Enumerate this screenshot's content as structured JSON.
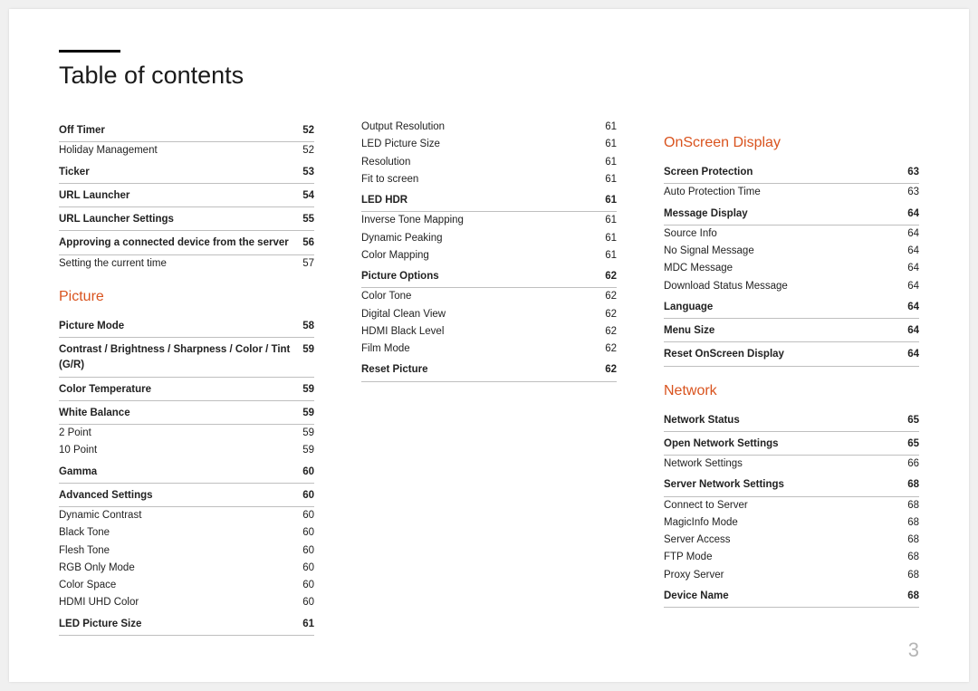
{
  "title": "Table of contents",
  "page_number": "3",
  "accent_color": "#d9531e",
  "columns": [
    {
      "sections": [
        {
          "heading": null,
          "rows": [
            {
              "label": "Off Timer",
              "page": "52",
              "bold": true
            },
            {
              "label": "Holiday Management",
              "page": "52",
              "bold": false
            },
            {
              "label": "Ticker",
              "page": "53",
              "bold": true
            },
            {
              "label": "URL Launcher",
              "page": "54",
              "bold": true
            },
            {
              "label": "URL Launcher Settings",
              "page": "55",
              "bold": true
            },
            {
              "label": "Approving a connected device from the server",
              "page": "56",
              "bold": true
            },
            {
              "label": "Setting the current time",
              "page": "57",
              "bold": false
            }
          ]
        },
        {
          "heading": "Picture",
          "rows": [
            {
              "label": "Picture Mode",
              "page": "58",
              "bold": true
            },
            {
              "label": "Contrast / Brightness / Sharpness / Color / Tint (G/R)",
              "page": "59",
              "bold": true
            },
            {
              "label": "Color Temperature",
              "page": "59",
              "bold": true
            },
            {
              "label": "White Balance",
              "page": "59",
              "bold": true
            },
            {
              "label": "2 Point",
              "page": "59",
              "bold": false
            },
            {
              "label": "10 Point",
              "page": "59",
              "bold": false
            },
            {
              "label": "Gamma",
              "page": "60",
              "bold": true
            },
            {
              "label": "Advanced Settings",
              "page": "60",
              "bold": true
            },
            {
              "label": "Dynamic Contrast",
              "page": "60",
              "bold": false
            },
            {
              "label": "Black Tone",
              "page": "60",
              "bold": false
            },
            {
              "label": "Flesh Tone",
              "page": "60",
              "bold": false
            },
            {
              "label": "RGB Only Mode",
              "page": "60",
              "bold": false
            },
            {
              "label": "Color Space",
              "page": "60",
              "bold": false
            },
            {
              "label": "HDMI UHD Color",
              "page": "60",
              "bold": false
            },
            {
              "label": "LED Picture Size",
              "page": "61",
              "bold": true
            }
          ]
        }
      ]
    },
    {
      "sections": [
        {
          "heading": null,
          "rows": [
            {
              "label": "Output Resolution",
              "page": "61",
              "bold": false
            },
            {
              "label": "LED Picture Size",
              "page": "61",
              "bold": false
            },
            {
              "label": "Resolution",
              "page": "61",
              "bold": false
            },
            {
              "label": "Fit to screen",
              "page": "61",
              "bold": false
            },
            {
              "label": "LED HDR",
              "page": "61",
              "bold": true
            },
            {
              "label": "Inverse Tone Mapping",
              "page": "61",
              "bold": false
            },
            {
              "label": "Dynamic Peaking",
              "page": "61",
              "bold": false
            },
            {
              "label": "Color Mapping",
              "page": "61",
              "bold": false
            },
            {
              "label": "Picture Options",
              "page": "62",
              "bold": true
            },
            {
              "label": "Color Tone",
              "page": "62",
              "bold": false
            },
            {
              "label": "Digital Clean View",
              "page": "62",
              "bold": false
            },
            {
              "label": "HDMI Black Level",
              "page": "62",
              "bold": false
            },
            {
              "label": "Film Mode",
              "page": "62",
              "bold": false
            },
            {
              "label": "Reset Picture",
              "page": "62",
              "bold": true
            }
          ]
        }
      ]
    },
    {
      "sections": [
        {
          "heading": "OnScreen Display",
          "rows": [
            {
              "label": "Screen Protection",
              "page": "63",
              "bold": true
            },
            {
              "label": "Auto Protection Time",
              "page": "63",
              "bold": false
            },
            {
              "label": "Message Display",
              "page": "64",
              "bold": true
            },
            {
              "label": "Source Info",
              "page": "64",
              "bold": false
            },
            {
              "label": "No Signal Message",
              "page": "64",
              "bold": false
            },
            {
              "label": "MDC Message",
              "page": "64",
              "bold": false
            },
            {
              "label": "Download Status Message",
              "page": "64",
              "bold": false
            },
            {
              "label": "Language",
              "page": "64",
              "bold": true
            },
            {
              "label": "Menu Size",
              "page": "64",
              "bold": true
            },
            {
              "label": "Reset OnScreen Display",
              "page": "64",
              "bold": true
            }
          ]
        },
        {
          "heading": "Network",
          "rows": [
            {
              "label": "Network Status",
              "page": "65",
              "bold": true
            },
            {
              "label": "Open Network Settings",
              "page": "65",
              "bold": true
            },
            {
              "label": "Network Settings",
              "page": "66",
              "bold": false
            },
            {
              "label": "Server Network Settings",
              "page": "68",
              "bold": true
            },
            {
              "label": "Connect to Server",
              "page": "68",
              "bold": false
            },
            {
              "label": "MagicInfo Mode",
              "page": "68",
              "bold": false
            },
            {
              "label": "Server Access",
              "page": "68",
              "bold": false
            },
            {
              "label": "FTP Mode",
              "page": "68",
              "bold": false
            },
            {
              "label": "Proxy Server",
              "page": "68",
              "bold": false
            },
            {
              "label": "Device Name",
              "page": "68",
              "bold": true
            }
          ]
        }
      ]
    }
  ]
}
